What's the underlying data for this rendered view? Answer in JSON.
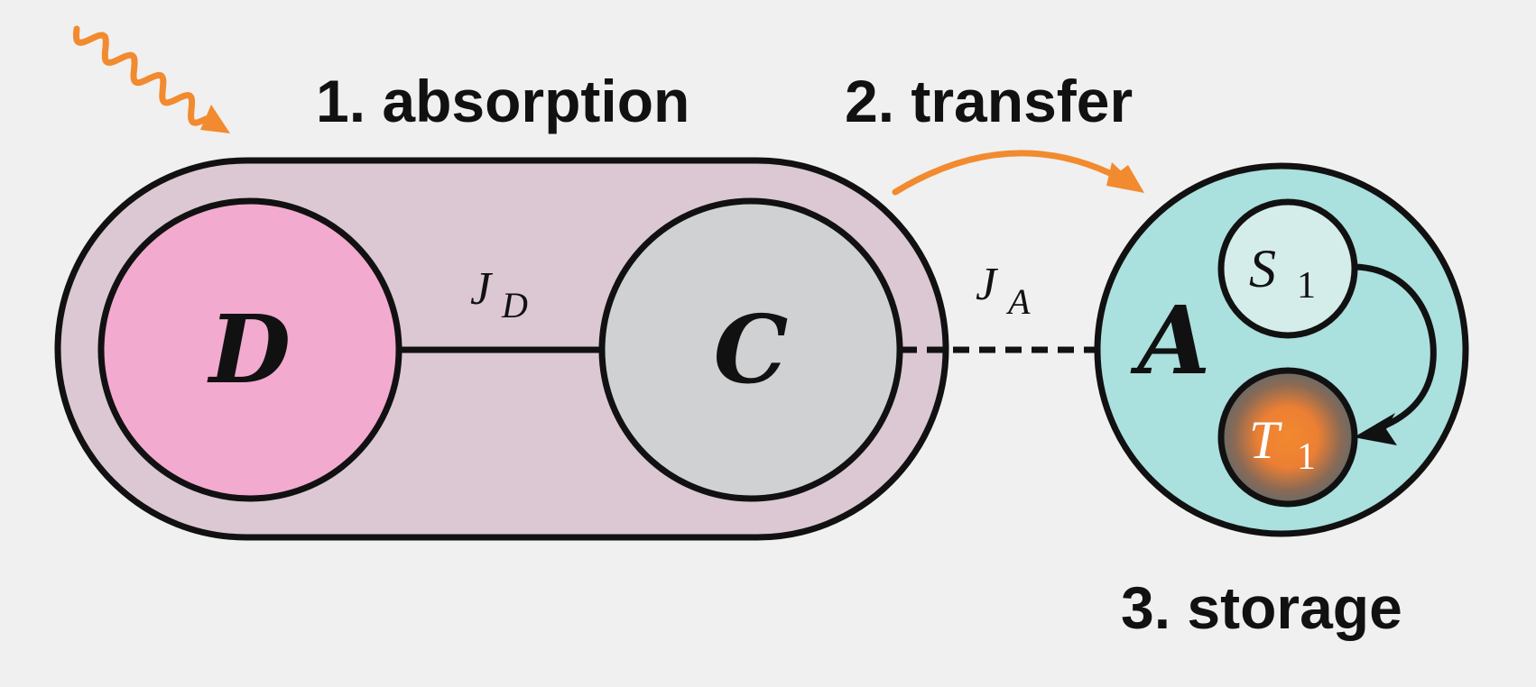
{
  "labels": {
    "absorption": "1. absorption",
    "transfer": "2. transfer",
    "storage": "3. storage"
  },
  "nodes": {
    "donor": "D",
    "core": "C",
    "acceptor": "A"
  },
  "couplings": {
    "jd_main": "J",
    "jd_sub": "D",
    "ja_main": "J",
    "ja_sub": "A"
  },
  "states": {
    "s_main": "S",
    "s_sub": "1",
    "t_main": "T",
    "t_sub": "1"
  },
  "colors": {
    "background": "#eff0ef",
    "capsule": "#dbc8d3",
    "donor": "#f3aacf",
    "core": "#d0d1d3",
    "acceptor": "#aae0de",
    "singlet": "#d4ecea",
    "triplet_glow": "#f28a2f",
    "triplet_rim": "#6a6a66",
    "photon": "#f28a2f",
    "outline": "#111111"
  }
}
